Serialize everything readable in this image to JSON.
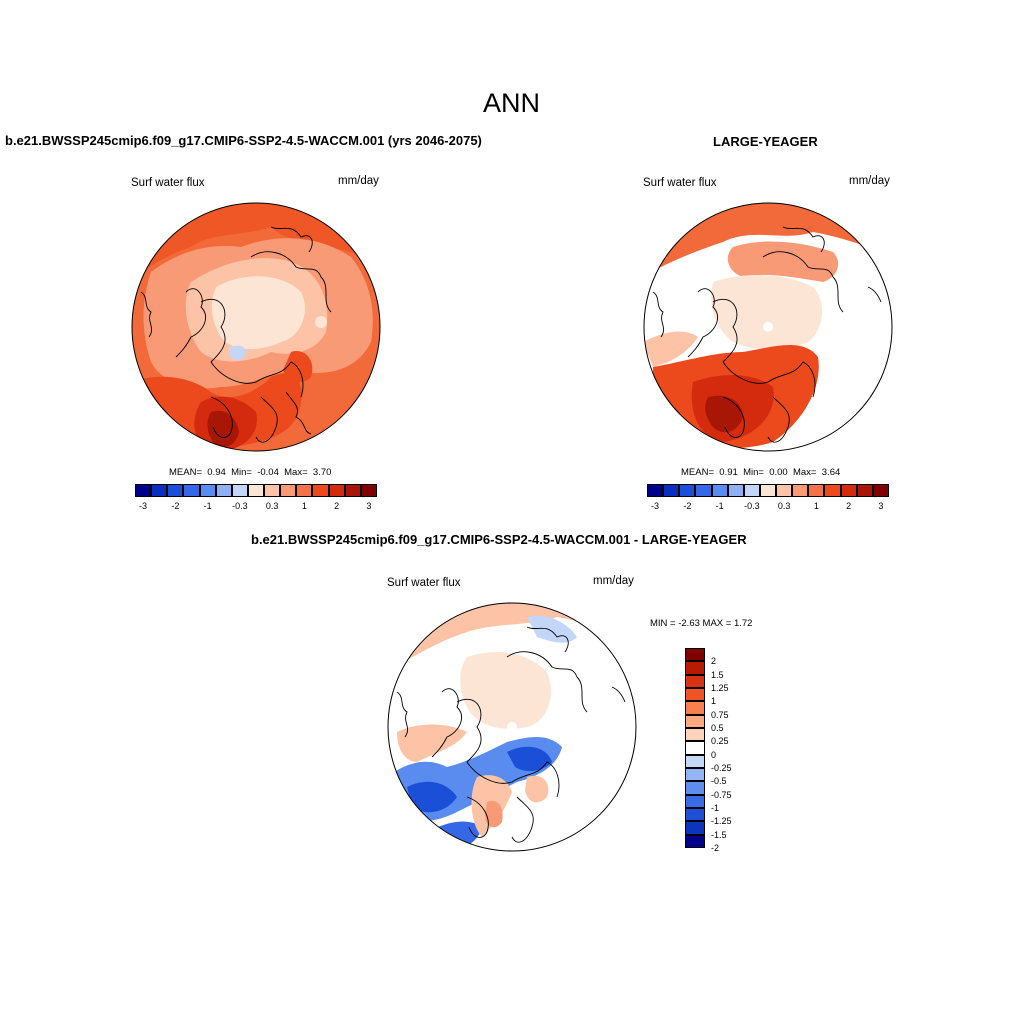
{
  "page": {
    "title": "ANN",
    "panel_left_title": "b.e21.BWSSP245cmip6.f09_g17.CMIP6-SSP2-4.5-WACCM.001 (yrs 2046-2075)",
    "panel_right_title": "LARGE-YEAGER",
    "panel_diff_title": "b.e21.BWSSP245cmip6.f09_g17.CMIP6-SSP2-4.5-WACCM.001 - LARGE-YEAGER"
  },
  "panels": [
    {
      "variable": "Surf water flux",
      "units": "mm/day",
      "mean_label": "MEAN=",
      "mean": "0.94",
      "min_label": "Min=",
      "min": "-0.04",
      "max_label": "Max=",
      "max": "3.70"
    },
    {
      "variable": "Surf water flux",
      "units": "mm/day",
      "mean_label": "MEAN=",
      "mean": "0.91",
      "min_label": "Min=",
      "min": "0.00",
      "max_label": "Max=",
      "max": "3.64"
    },
    {
      "variable": "Surf water flux",
      "units": "mm/day",
      "minmax_text": "MIN =  -2.63 MAX =   1.72"
    }
  ],
  "colorbar_h": {
    "colors": [
      "#00008b",
      "#0a2fbe",
      "#1b4fd8",
      "#3468e6",
      "#5a8bee",
      "#8fb1f3",
      "#c3d6f7",
      "#fde5d6",
      "#fcc3a6",
      "#f99a76",
      "#f57148",
      "#ec4a1c",
      "#d42a0e",
      "#a81605",
      "#800000"
    ],
    "ticks": [
      "-3",
      "-2",
      "-1",
      "-0.3",
      "0.3",
      "1",
      "2",
      "3"
    ]
  },
  "colorbar_v": {
    "colors": [
      "#800000",
      "#b81a05",
      "#d83210",
      "#ef5422",
      "#f8804f",
      "#fba97f",
      "#fdd3bb",
      "#ffffff",
      "#c5d8f7",
      "#93b5f3",
      "#5e8ded",
      "#3a6be5",
      "#1f4fd6",
      "#0e33bd",
      "#00008b"
    ],
    "labels": [
      "2",
      "1.5",
      "1.25",
      "1",
      "0.75",
      "0.5",
      "0.25",
      "0",
      "-0.25",
      "-0.5",
      "-0.75",
      "-1",
      "-1.25",
      "-1.5",
      "-2"
    ]
  }
}
